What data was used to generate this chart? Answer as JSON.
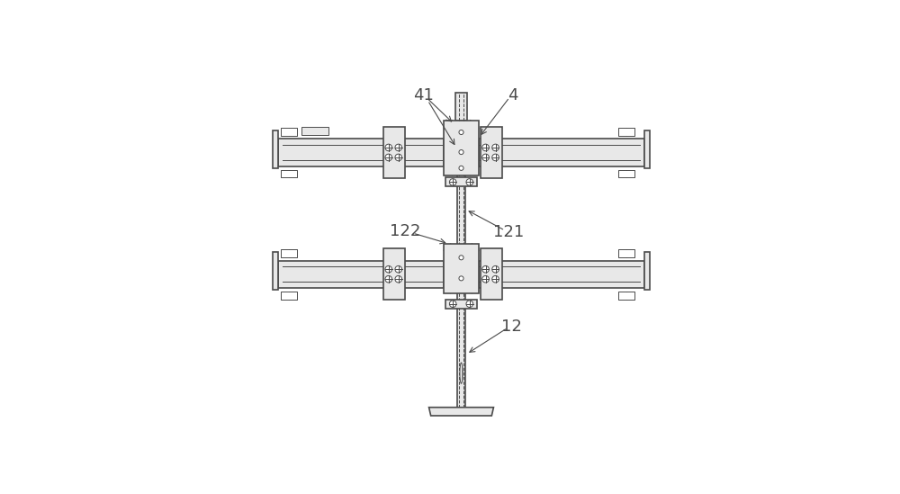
{
  "bg_color": "#ffffff",
  "line_color": "#4a4a4a",
  "fill_color": "#d8d8d8",
  "light_fill": "#e8e8e8",
  "dashed_color": "#6a6a6a",
  "fig_width": 10.0,
  "fig_height": 5.49,
  "label_fontsize": 13
}
